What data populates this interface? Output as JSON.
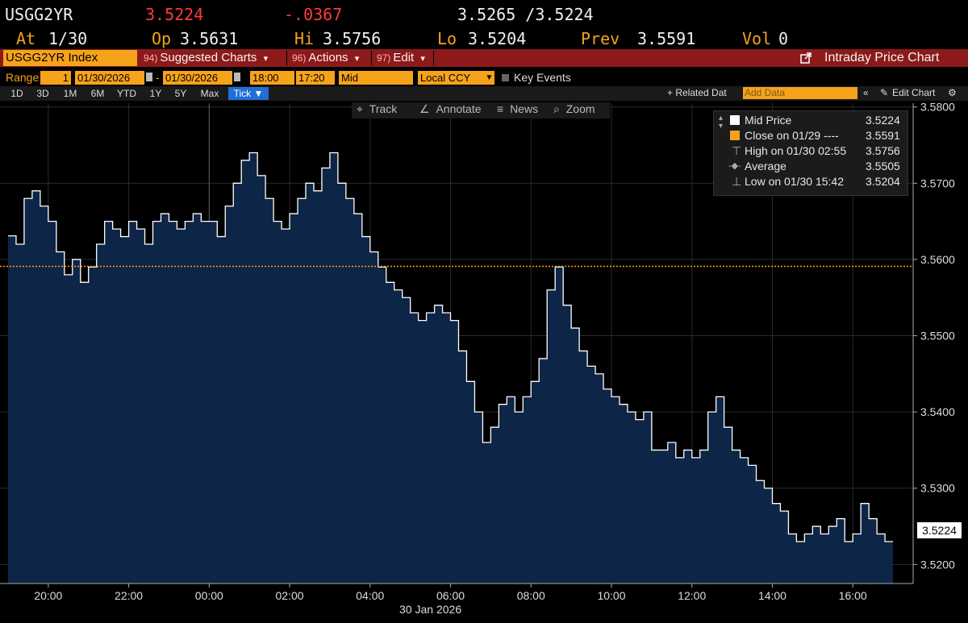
{
  "header": {
    "ticker": "USGG2YR",
    "last": "3.5224",
    "change": "-.0367",
    "bid_ask": "3.5265 /3.5224",
    "at_label": "At",
    "at_value": "1/30",
    "open_label": "Op",
    "open_value": "3.5631",
    "high_label": "Hi",
    "high_value": "3.5756",
    "low_label": "Lo",
    "low_value": "3.5204",
    "prev_label": "Prev",
    "prev_value": "3.5591",
    "vol_label": "Vol",
    "vol_value": "0"
  },
  "toolbar": {
    "security": "USGG2YR Index",
    "suggested_num": "94)",
    "suggested_label": "Suggested Charts",
    "actions_num": "96)",
    "actions_label": "Actions",
    "edit_num": "97)",
    "edit_label": "Edit",
    "dropdown_arrow": "▾",
    "chart_title": "Intraday Price Chart"
  },
  "range": {
    "label": "Range",
    "count": "1",
    "start_date": "01/30/2026",
    "dash": "-",
    "end_date": "01/30/2026",
    "start_time": "18:00",
    "end_time": "17:20",
    "pricing": "Mid",
    "currency": "Local CCY",
    "key_events": "Key Events"
  },
  "periods": {
    "items": [
      "1D",
      "3D",
      "1M",
      "6M",
      "YTD",
      "1Y",
      "5Y",
      "Max"
    ],
    "active": "Tick ▼",
    "related": "+ Related Dat",
    "add_data_placeholder": "Add Data",
    "edit_chart": "Edit Chart"
  },
  "chart_tools": {
    "track": "Track",
    "annotate": "Annotate",
    "news": "News",
    "zoom": "Zoom"
  },
  "legend": {
    "items": [
      {
        "label": "Mid Price",
        "value": "3.5224"
      },
      {
        "label": "Close on 01/29 ----",
        "value": "3.5591"
      },
      {
        "label": "High on 01/30 02:55",
        "value": "3.5756"
      },
      {
        "label": "Average",
        "value": "3.5505"
      },
      {
        "label": "Low on 01/30 15:42",
        "value": "3.5204"
      }
    ]
  },
  "colors": {
    "background": "#000000",
    "area_fill": "#0d2546",
    "price_line": "#ffffff",
    "close_line": "#f7a21b",
    "amber": "#f7a21b",
    "red": "#ff3b3b",
    "toolbar": "#8c1a1a"
  },
  "chart_data": {
    "type": "area",
    "xlabel": "30 Jan 2026",
    "x_ticks": [
      "20:00",
      "22:00",
      "00:00",
      "02:00",
      "04:00",
      "06:00",
      "08:00",
      "10:00",
      "12:00",
      "14:00",
      "16:00"
    ],
    "y_ticks": [
      "3.5800",
      "3.5700",
      "3.5600",
      "3.5500",
      "3.5400",
      "3.5300",
      "3.5200"
    ],
    "ylim": [
      3.5175,
      3.5805
    ],
    "x_range_hours": [
      -5.2,
      17.5
    ],
    "current_value": "3.5224",
    "previous_close": 3.5591,
    "grid": true,
    "legend_position": "top-right",
    "series": [
      {
        "name": "Mid Price",
        "x": [
          -5.0,
          -4.8,
          -4.6,
          -4.4,
          -4.2,
          -4.0,
          -3.8,
          -3.6,
          -3.4,
          -3.2,
          -3.0,
          -2.8,
          -2.6,
          -2.4,
          -2.2,
          -2.0,
          -1.8,
          -1.6,
          -1.4,
          -1.2,
          -1.0,
          -0.8,
          -0.6,
          -0.4,
          -0.2,
          0.0,
          0.2,
          0.4,
          0.6,
          0.8,
          1.0,
          1.2,
          1.4,
          1.6,
          1.8,
          2.0,
          2.2,
          2.4,
          2.6,
          2.8,
          3.0,
          3.2,
          3.4,
          3.6,
          3.8,
          4.0,
          4.2,
          4.4,
          4.6,
          4.8,
          5.0,
          5.2,
          5.4,
          5.6,
          5.8,
          6.0,
          6.2,
          6.4,
          6.6,
          6.8,
          7.0,
          7.2,
          7.4,
          7.6,
          7.8,
          8.0,
          8.2,
          8.4,
          8.6,
          8.8,
          9.0,
          9.2,
          9.4,
          9.6,
          9.8,
          10.0,
          10.2,
          10.4,
          10.6,
          10.8,
          11.0,
          11.2,
          11.4,
          11.6,
          11.8,
          12.0,
          12.2,
          12.4,
          12.6,
          12.8,
          13.0,
          13.2,
          13.4,
          13.6,
          13.8,
          14.0,
          14.2,
          14.4,
          14.6,
          14.8,
          15.0,
          15.2,
          15.4,
          15.6,
          15.8,
          16.0,
          16.2,
          16.4,
          16.6,
          16.8
        ],
        "y": [
          3.5631,
          3.562,
          3.568,
          3.569,
          3.567,
          3.565,
          3.561,
          3.558,
          3.56,
          3.557,
          3.559,
          3.562,
          3.565,
          3.564,
          3.563,
          3.565,
          3.564,
          3.562,
          3.565,
          3.566,
          3.565,
          3.564,
          3.565,
          3.566,
          3.565,
          3.565,
          3.563,
          3.567,
          3.57,
          3.573,
          3.574,
          3.571,
          3.568,
          3.565,
          3.564,
          3.566,
          3.568,
          3.57,
          3.569,
          3.572,
          3.574,
          3.57,
          3.568,
          3.566,
          3.563,
          3.561,
          3.559,
          3.557,
          3.556,
          3.555,
          3.553,
          3.552,
          3.553,
          3.554,
          3.553,
          3.552,
          3.548,
          3.544,
          3.54,
          3.536,
          3.538,
          3.541,
          3.542,
          3.54,
          3.542,
          3.544,
          3.547,
          3.556,
          3.559,
          3.554,
          3.551,
          3.548,
          3.546,
          3.545,
          3.543,
          3.542,
          3.541,
          3.54,
          3.539,
          3.54,
          3.535,
          3.535,
          3.536,
          3.534,
          3.535,
          3.534,
          3.535,
          3.54,
          3.542,
          3.538,
          3.535,
          3.534,
          3.533,
          3.531,
          3.53,
          3.528,
          3.527,
          3.524,
          3.523,
          3.524,
          3.525,
          3.524,
          3.525,
          3.526,
          3.523,
          3.524,
          3.528,
          3.526,
          3.524,
          3.523
        ]
      }
    ]
  }
}
